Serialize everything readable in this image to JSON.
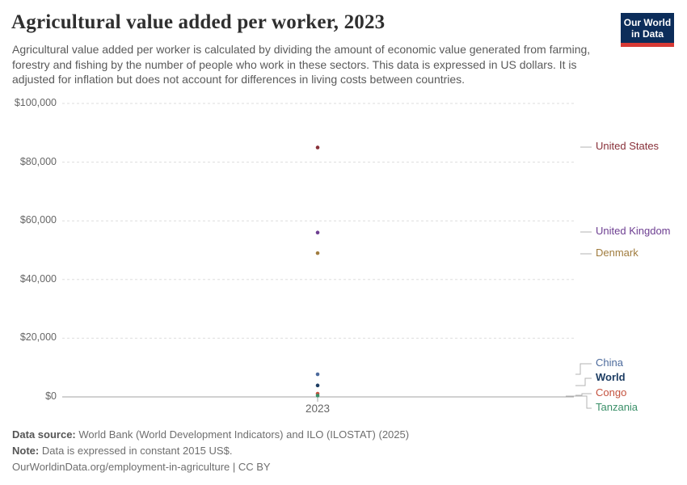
{
  "header": {
    "title": "Agricultural value added per worker, 2023",
    "subtitle": "Agricultural value added per worker is calculated by dividing the amount of economic value generated from farming, forestry and fishing by the number of people who work in these sectors. This data is expressed in US dollars. It is adjusted for inflation but does not account for differences in living costs between countries.",
    "logo": {
      "line1": "Our World",
      "line2": "in Data",
      "bg_color": "#0c2d5a",
      "bar_color": "#d73a35"
    }
  },
  "chart_data": {
    "type": "scatter",
    "x": [
      2023
    ],
    "x_tick_label": "2023",
    "ylim": [
      0,
      100000
    ],
    "grid": true,
    "y_ticks": [
      {
        "label": "$0",
        "value": 0
      },
      {
        "label": "$20,000",
        "value": 20000
      },
      {
        "label": "$40,000",
        "value": 40000
      },
      {
        "label": "$60,000",
        "value": 60000
      },
      {
        "label": "$80,000",
        "value": 80000
      },
      {
        "label": "$100,000",
        "value": 100000
      }
    ],
    "series": [
      {
        "name": "United States",
        "value": 85000,
        "color": "#883039",
        "bold": false
      },
      {
        "name": "United Kingdom",
        "value": 56000,
        "color": "#6d3e91",
        "bold": false
      },
      {
        "name": "Denmark",
        "value": 49000,
        "color": "#a07c3e",
        "bold": false
      },
      {
        "name": "China",
        "value": 7700,
        "color": "#4c6a9c",
        "bold": false
      },
      {
        "name": "World",
        "value": 3900,
        "color": "#1d3d63",
        "bold": true
      },
      {
        "name": "Congo",
        "value": 1100,
        "color": "#c4523e",
        "bold": false
      },
      {
        "name": "Tanzania",
        "value": 450,
        "color": "#3a8f68",
        "bold": false
      }
    ],
    "legend_position": "right"
  },
  "footer": {
    "data_source_label": "Data source:",
    "data_source": "World Bank (World Development Indicators) and ILO (ILOSTAT) (2025)",
    "note_label": "Note:",
    "note": "Data is expressed in constant 2015 US$.",
    "url_line": "OurWorldinData.org/employment-in-agriculture | CC BY"
  }
}
